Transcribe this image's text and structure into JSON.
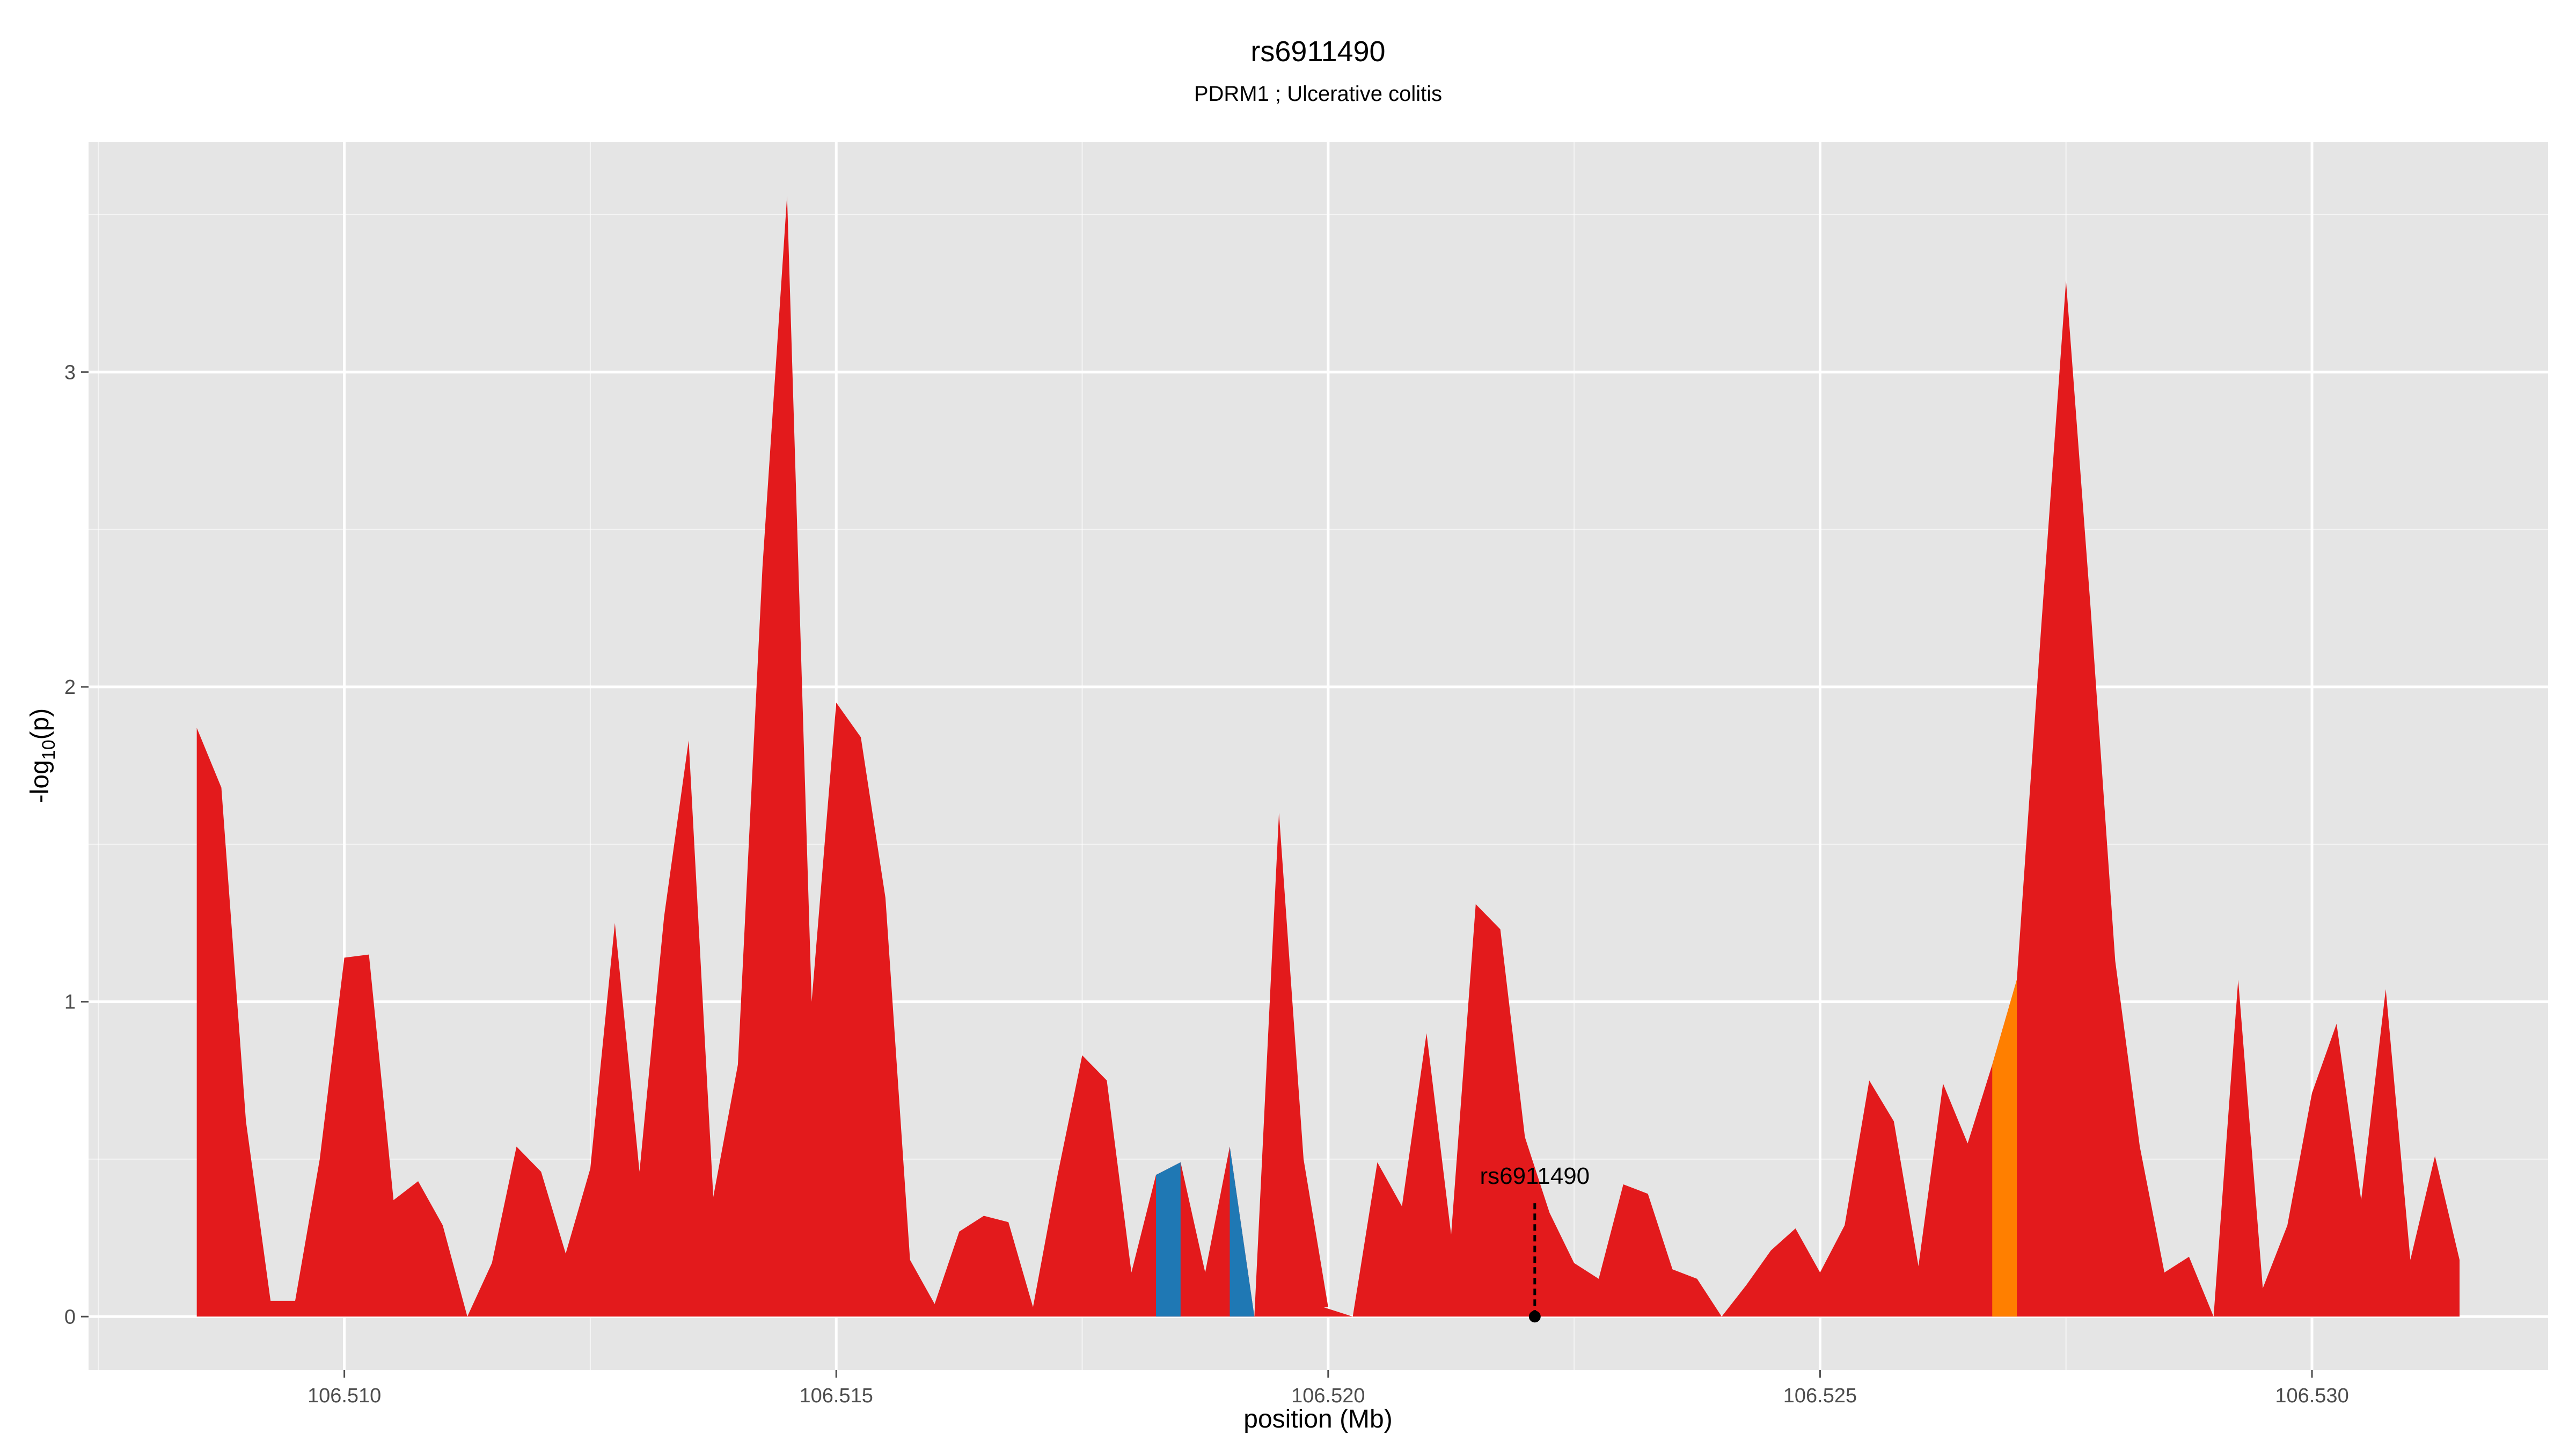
{
  "chart_data": {
    "type": "area",
    "title": "rs6911490",
    "subtitle": "PDRM1 ; Ulcerative colitis",
    "xlabel": "position (Mb)",
    "ylabel_main": "-log",
    "ylabel_sub": "10",
    "ylabel_tail": "(p)",
    "xlim": [
      106.5074,
      106.5324
    ],
    "ylim": [
      -0.17,
      3.73
    ],
    "x_ticks": [
      106.51,
      106.515,
      106.52,
      106.525,
      106.53
    ],
    "x_tick_labels": [
      "106.510",
      "106.515",
      "106.520",
      "106.525",
      "106.530"
    ],
    "y_ticks": [
      0,
      1,
      2,
      3
    ],
    "y_tick_labels": [
      "0",
      "1",
      "2",
      "3"
    ],
    "grid": true,
    "colors": {
      "panel": "#e5e5e5",
      "grid": "#ffffff",
      "default": "#e31a1c",
      "blue": "#1f78b4",
      "orange": "#ff7f00"
    },
    "series": [
      {
        "x": [
          106.5085,
          106.50875,
          106.509,
          106.50925,
          106.5095,
          106.50975,
          106.51,
          106.51025,
          106.5105,
          106.51075,
          106.511,
          106.51125,
          106.5115,
          106.51175,
          106.512,
          106.51225,
          106.5125,
          106.51275,
          106.513,
          106.51325,
          106.5135,
          106.51375,
          106.514,
          106.51425,
          106.5145,
          106.51475,
          106.515,
          106.51525,
          106.5155,
          106.51575,
          106.516,
          106.51625,
          106.5165,
          106.51675,
          106.517,
          106.51725,
          106.5175,
          106.51775,
          106.518,
          106.51825,
          106.5185,
          106.51875,
          106.519,
          106.51925,
          106.5195,
          106.51975,
          106.52,
          106.51995,
          106.52025,
          106.5205,
          106.52075,
          106.521,
          106.52125,
          106.5215,
          106.52175,
          106.522,
          106.52225,
          106.5225,
          106.52275,
          106.523,
          106.52325,
          106.5235,
          106.52375,
          106.524,
          106.52425,
          106.5245,
          106.52475,
          106.525,
          106.52525,
          106.5255,
          106.52575,
          106.526,
          106.52625,
          106.5265,
          106.52675,
          106.527,
          106.52725,
          106.5275,
          106.52775,
          106.528,
          106.52825,
          106.5285,
          106.52875,
          106.529,
          106.52925,
          106.5295,
          106.52975,
          106.53,
          106.53025,
          106.5305,
          106.53075,
          106.531,
          106.53125,
          106.5315
        ],
        "y": [
          1.87,
          1.68,
          0.62,
          0.05,
          0.05,
          0.5,
          1.14,
          1.15,
          0.37,
          0.43,
          0.29,
          0.0,
          0.17,
          0.54,
          0.46,
          0.2,
          0.47,
          1.25,
          0.46,
          1.27,
          1.83,
          0.38,
          0.8,
          2.38,
          3.56,
          1.0,
          1.95,
          1.84,
          1.33,
          0.18,
          0.04,
          0.27,
          0.32,
          0.3,
          0.03,
          0.45,
          0.83,
          0.75,
          0.14,
          0.45,
          0.49,
          0.14,
          0.54,
          0.0,
          1.6,
          0.5,
          0.03,
          0.03,
          0.0,
          0.49,
          0.35,
          0.9,
          0.26,
          1.31,
          1.23,
          0.57,
          0.33,
          0.17,
          0.12,
          0.42,
          0.39,
          0.15,
          0.12,
          0.0,
          0.1,
          0.21,
          0.28,
          0.14,
          0.29,
          0.75,
          0.62,
          0.16,
          0.74,
          0.55,
          0.8,
          1.07,
          2.2,
          3.29,
          2.25,
          1.13,
          0.54,
          0.14,
          0.19,
          0.0,
          1.07,
          0.09,
          0.29,
          0.71,
          0.93,
          0.37,
          1.04,
          0.18,
          0.51,
          0.18
        ],
        "highlights": [
          {
            "from": 106.51825,
            "to": 106.5185,
            "color": "blue"
          },
          {
            "from": 106.519,
            "to": 106.51925,
            "color": "blue"
          },
          {
            "from": 106.52675,
            "to": 106.527,
            "color": "orange"
          }
        ]
      }
    ],
    "annotation": {
      "label": "rs6911490",
      "x": 106.5221,
      "y": 0.0,
      "line_top_y": 0.36
    }
  }
}
